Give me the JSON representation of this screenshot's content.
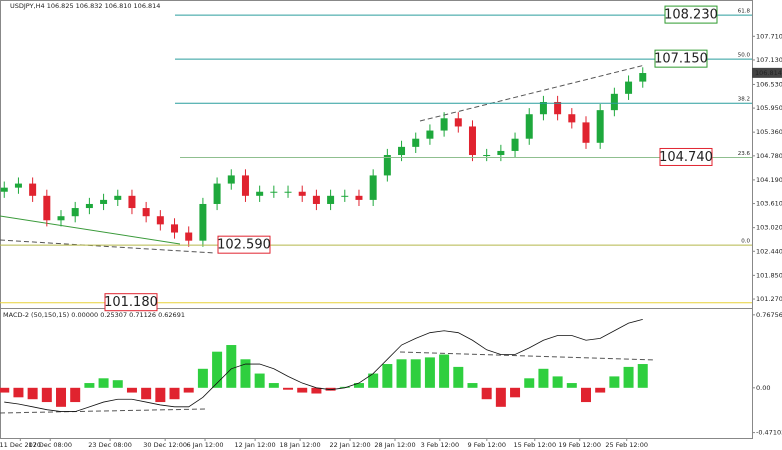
{
  "chart_data": [
    {
      "type": "candlestick",
      "title": "USDJPY,H4 106.825 106.832 106.810 106.814",
      "up_color": "#1ea83c",
      "down_color": "#e0232f",
      "x": [
        0,
        1,
        2,
        3,
        4,
        5,
        6,
        7,
        8,
        9,
        10,
        11,
        12,
        13,
        14,
        15,
        16,
        17,
        18,
        19,
        20,
        21,
        22,
        23,
        24,
        25,
        26,
        27,
        28,
        29,
        30,
        31,
        32,
        33,
        34,
        35,
        36,
        37,
        38,
        39,
        40,
        41,
        42,
        43,
        44,
        45
      ],
      "open": [
        103.9,
        104.0,
        104.1,
        103.8,
        103.2,
        103.3,
        103.5,
        103.6,
        103.7,
        103.8,
        103.5,
        103.3,
        103.1,
        102.9,
        102.7,
        103.6,
        104.1,
        104.3,
        103.8,
        103.9,
        103.9,
        103.9,
        103.8,
        103.6,
        103.8,
        103.8,
        103.7,
        104.3,
        104.8,
        105.0,
        105.2,
        105.4,
        105.7,
        105.5,
        104.8,
        104.8,
        104.9,
        105.2,
        105.8,
        106.1,
        105.8,
        105.6,
        105.1,
        105.9,
        106.3,
        106.6
      ],
      "high": [
        104.15,
        104.25,
        104.25,
        103.95,
        103.45,
        103.65,
        103.75,
        103.85,
        103.95,
        103.95,
        103.65,
        103.45,
        103.25,
        103.05,
        103.75,
        104.25,
        104.45,
        104.45,
        104.05,
        104.05,
        104.05,
        104.05,
        103.95,
        103.95,
        103.95,
        103.95,
        104.45,
        104.95,
        105.15,
        105.35,
        105.55,
        105.85,
        105.85,
        105.65,
        104.95,
        105.05,
        105.35,
        105.95,
        106.25,
        106.25,
        105.95,
        105.75,
        106.05,
        106.45,
        106.75,
        106.95
      ],
      "low": [
        103.75,
        103.85,
        103.65,
        103.05,
        103.05,
        103.15,
        103.35,
        103.45,
        103.55,
        103.35,
        103.15,
        102.95,
        102.75,
        102.55,
        102.55,
        103.45,
        103.95,
        103.65,
        103.65,
        103.75,
        103.75,
        103.65,
        103.45,
        103.45,
        103.65,
        103.55,
        103.55,
        104.15,
        104.65,
        104.85,
        105.05,
        105.25,
        105.35,
        104.65,
        104.65,
        104.65,
        104.75,
        105.05,
        105.65,
        105.65,
        105.45,
        104.95,
        104.95,
        105.75,
        106.15,
        106.45
      ],
      "close": [
        104.0,
        104.1,
        103.8,
        103.2,
        103.3,
        103.5,
        103.6,
        103.7,
        103.8,
        103.5,
        103.3,
        103.1,
        102.9,
        102.7,
        103.6,
        104.1,
        104.3,
        103.8,
        103.9,
        103.9,
        103.9,
        103.8,
        103.6,
        103.8,
        103.8,
        103.7,
        104.3,
        104.8,
        105.0,
        105.2,
        105.4,
        105.7,
        105.5,
        104.8,
        104.8,
        104.9,
        105.2,
        105.8,
        106.1,
        105.8,
        105.6,
        105.1,
        105.9,
        106.3,
        106.6,
        106.81
      ],
      "xlim": [
        -0.3,
        52.7
      ],
      "ylim": [
        101.05,
        108.6
      ],
      "yticks": [
        {
          "value": 107.71,
          "label": "107.710"
        },
        {
          "value": 107.13,
          "label": "107.130"
        },
        {
          "value": 106.53,
          "label": "106.530"
        },
        {
          "value": 105.95,
          "label": "105.950"
        },
        {
          "value": 105.36,
          "label": "105.360"
        },
        {
          "value": 104.78,
          "label": "104.780"
        },
        {
          "value": 104.19,
          "label": "104.190"
        },
        {
          "value": 103.61,
          "label": "103.610"
        },
        {
          "value": 103.02,
          "label": "103.020"
        },
        {
          "value": 102.44,
          "label": "102.440"
        },
        {
          "value": 101.85,
          "label": "101.850"
        },
        {
          "value": 101.27,
          "label": "101.270"
        }
      ],
      "xticks": [
        {
          "value": 1.13,
          "label": "11 Dec 2020"
        },
        {
          "value": 3.24,
          "label": "17 Dec 08:00"
        },
        {
          "value": 7.46,
          "label": "23 Dec 08:00"
        },
        {
          "value": 11.34,
          "label": "30 Dec 12:00"
        },
        {
          "value": 14.15,
          "label": "6 Jan 12:00"
        },
        {
          "value": 17.68,
          "label": "12 Jan 12:00"
        },
        {
          "value": 20.85,
          "label": "18 Jan 12:00"
        },
        {
          "value": 24.37,
          "label": "22 Jan 12:00"
        },
        {
          "value": 27.54,
          "label": "28 Jan 12:00"
        },
        {
          "value": 30.7,
          "label": "3 Feb 12:00"
        },
        {
          "value": 34.01,
          "label": "9 Feb 12:00"
        },
        {
          "value": 37.39,
          "label": "15 Feb 12:00"
        },
        {
          "value": 40.56,
          "label": "19 Feb 12:00"
        },
        {
          "value": 43.87,
          "label": "25 Feb 12:00"
        }
      ],
      "last_price": 106.814,
      "levels": [
        {
          "level": "61.8",
          "price": 108.23,
          "price_label": "108.230",
          "color": "#2a9d9d",
          "label_color": "#2e9a2e"
        },
        {
          "level": "50.0",
          "price": 107.15,
          "price_label": "107.150",
          "color": "#2a9d9d",
          "label_color": "#2e9a2e"
        },
        {
          "level": "38.2",
          "price": 106.07,
          "color": "#2a9d9d"
        },
        {
          "level": "23.6",
          "price": 104.74,
          "price_label": "104.740",
          "color": "#8fbf8f",
          "label_color": "#e0232f"
        },
        {
          "level": "0.0",
          "price": 102.59,
          "price_label": "102.590",
          "color": "#b5b84a",
          "label_color": "#e0232f"
        },
        {
          "price": 101.18,
          "price_label": "101.180",
          "color": "#e8d23a",
          "label_color": "#e0232f"
        }
      ]
    },
    {
      "type": "histogram",
      "title": "MACD-2 (50,150,15) 0.00000 0.25307 0.71126 0.62691",
      "up_color": "#2fcf3f",
      "down_color": "#e0232f",
      "line_color": "#111111",
      "x": [
        0,
        1,
        2,
        3,
        4,
        5,
        6,
        7,
        8,
        9,
        10,
        11,
        12,
        13,
        14,
        15,
        16,
        17,
        18,
        19,
        20,
        21,
        22,
        23,
        24,
        25,
        26,
        27,
        28,
        29,
        30,
        31,
        32,
        33,
        34,
        35,
        36,
        37,
        38,
        39,
        40,
        41,
        42,
        43,
        44,
        45
      ],
      "values": [
        -0.05,
        -0.1,
        -0.12,
        -0.15,
        -0.2,
        -0.15,
        0.05,
        0.1,
        0.08,
        -0.05,
        -0.12,
        -0.15,
        -0.12,
        -0.05,
        0.2,
        0.38,
        0.45,
        0.3,
        0.15,
        0.05,
        -0.02,
        -0.05,
        -0.06,
        -0.03,
        0.01,
        0.05,
        0.15,
        0.25,
        0.3,
        0.3,
        0.32,
        0.35,
        0.22,
        0.05,
        -0.12,
        -0.2,
        -0.1,
        0.1,
        0.2,
        0.12,
        0.05,
        -0.15,
        -0.05,
        0.12,
        0.22,
        0.25
      ],
      "line_values": [
        -0.15,
        -0.17,
        -0.2,
        -0.23,
        -0.25,
        -0.25,
        -0.2,
        -0.15,
        -0.12,
        -0.12,
        -0.15,
        -0.18,
        -0.2,
        -0.2,
        -0.1,
        0.05,
        0.2,
        0.25,
        0.25,
        0.2,
        0.12,
        0.05,
        0.0,
        -0.02,
        0.0,
        0.05,
        0.15,
        0.3,
        0.45,
        0.52,
        0.58,
        0.6,
        0.58,
        0.5,
        0.4,
        0.35,
        0.35,
        0.42,
        0.5,
        0.55,
        0.55,
        0.5,
        0.52,
        0.6,
        0.68,
        0.72
      ],
      "xlim": [
        -0.3,
        52.7
      ],
      "ylim": [
        -0.528,
        0.829
      ],
      "yticks": [
        0.76756,
        {
          "value": 0,
          "label": "0.00"
        },
        -0.47103
      ]
    }
  ]
}
